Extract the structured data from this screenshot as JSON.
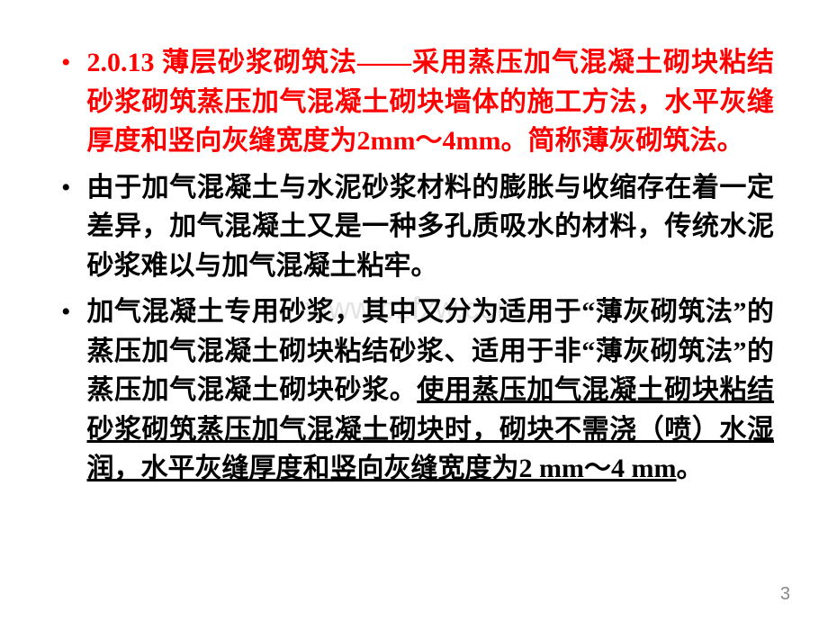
{
  "slide": {
    "background_color": "#ffffff",
    "text_color": "#000000",
    "highlight_color": "#ff0000",
    "watermark_color": "rgba(128,128,128,0.22)",
    "page_number_color": "#888888",
    "font_size_body": 30,
    "font_size_watermark": 34,
    "font_size_page_number": 20,
    "bullets": [
      {
        "marker_color": "red",
        "segments": [
          {
            "text": "2.0.13 薄层砂浆砌筑法——采用蒸压加气混凝土砌块粘结砂浆砌筑蒸压加气混凝土砌块墙体的施工方法，水平灰缝厚度和竖向灰缝宽度为2mm～4mm。简称薄灰砌筑法。",
            "color": "red"
          }
        ]
      },
      {
        "marker_color": "black",
        "segments": [
          {
            "text": "由于加气混凝土与水泥砂浆材料的膨胀与收缩存在着一定差异，加气混凝土又是一种多孔质吸水的材料，传统水泥砂浆难以与加气混凝土粘牢。",
            "color": "black"
          }
        ]
      },
      {
        "marker_color": "black",
        "segments": [
          {
            "text": "加气混凝土专用砂浆，其中又分为适用于“薄灰砌筑法”的蒸压加气混凝土砌块粘结砂浆、适用于非“薄灰砌筑法”的蒸压加气混凝土砌块砂浆。",
            "color": "black"
          },
          {
            "text": "使用蒸压加气混凝土砌块粘结砂浆砌筑蒸压加气混凝土砌块时，砌块不需浇（喷）水湿润，水平灰缝厚度和竖向灰缝宽度为2 mm～4 mm",
            "color": "black",
            "underline": true
          },
          {
            "text": "。",
            "color": "black"
          }
        ]
      }
    ],
    "watermark": "www.bzfxw.com",
    "page_number": "3"
  }
}
